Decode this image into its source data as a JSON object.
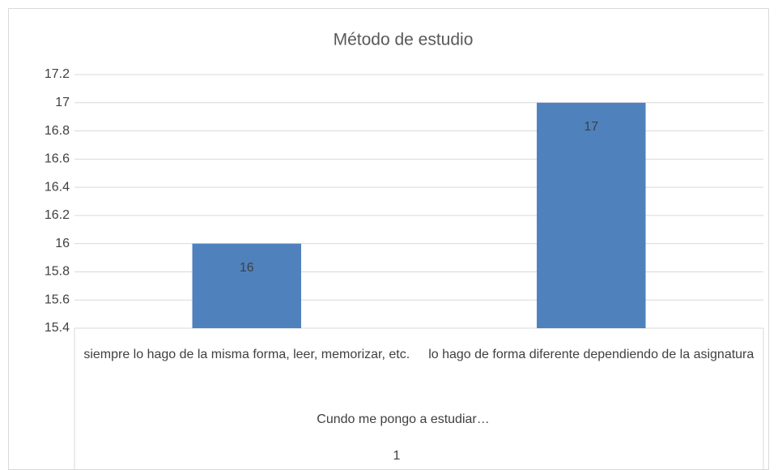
{
  "chart_data": {
    "type": "bar",
    "title": "Método de estudio",
    "categories": [
      "siempre lo hago de la misma forma, leer, memorizar, etc.",
      "lo hago de forma diferente dependiendo de la asignatura"
    ],
    "category_group": "Cundo me pongo a estudiar…",
    "category_outer": "1",
    "values": [
      16,
      17
    ],
    "color": "#4f81bd",
    "ylim": [
      15.4,
      17.2
    ],
    "yticks": [
      15.4,
      15.6,
      15.8,
      16,
      16.2,
      16.4,
      16.6,
      16.8,
      17,
      17.2
    ],
    "grid": true
  }
}
